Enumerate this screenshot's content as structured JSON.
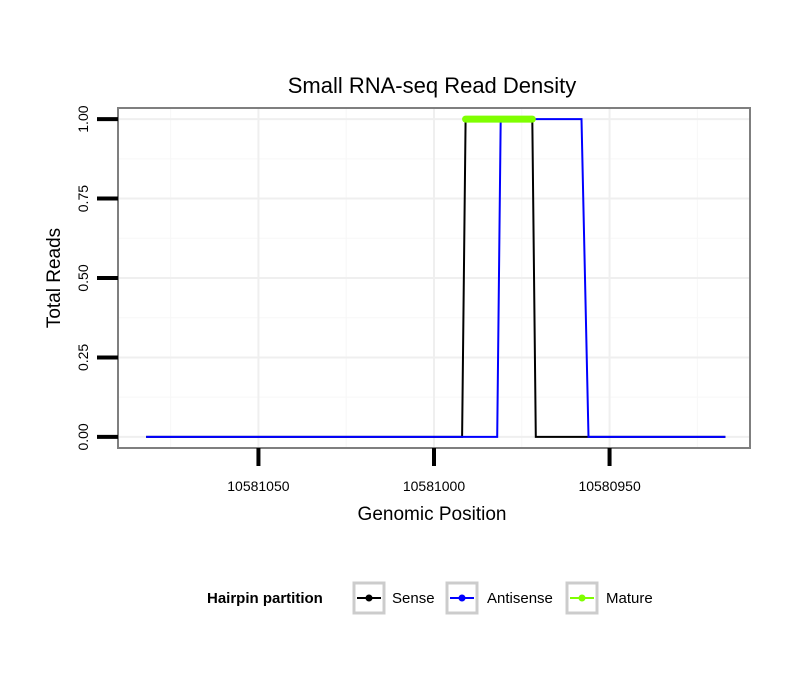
{
  "chart_data": {
    "type": "line",
    "title": "Small RNA-seq Read Density",
    "xlabel": "Genomic Position",
    "ylabel": "Total Reads",
    "x_reversed": true,
    "xlim": [
      10581090,
      10580910
    ],
    "ylim": [
      -0.035,
      1.035
    ],
    "x_ticks": [
      10581050,
      10581000,
      10580950
    ],
    "x_tick_labels": [
      "10581050",
      "10581000",
      "10580950"
    ],
    "y_ticks": [
      0,
      0.25,
      0.5,
      0.75,
      1.0
    ],
    "y_tick_labels": [
      "0.00",
      "0.25",
      "0.50",
      "0.75",
      "1.00"
    ],
    "grid": true,
    "series": [
      {
        "name": "Sense",
        "color": "#000000",
        "x": [
          10581082,
          10580992,
          10580991,
          10580972,
          10580971,
          10580917
        ],
        "y": [
          0,
          0,
          1,
          1,
          0,
          0
        ]
      },
      {
        "name": "Antisense",
        "color": "#0000ff",
        "x": [
          10581082,
          10580982,
          10580981,
          10580958,
          10580956,
          10580917
        ],
        "y": [
          0,
          0,
          1,
          1,
          0,
          0
        ]
      },
      {
        "name": "Mature",
        "color": "#7fff00",
        "x": [
          10580991,
          10580972
        ],
        "y": [
          1,
          1
        ]
      }
    ],
    "legend": {
      "title": "Hairpin partition",
      "placement": "bottom",
      "entries": [
        "Sense",
        "Antisense",
        "Mature"
      ]
    }
  }
}
